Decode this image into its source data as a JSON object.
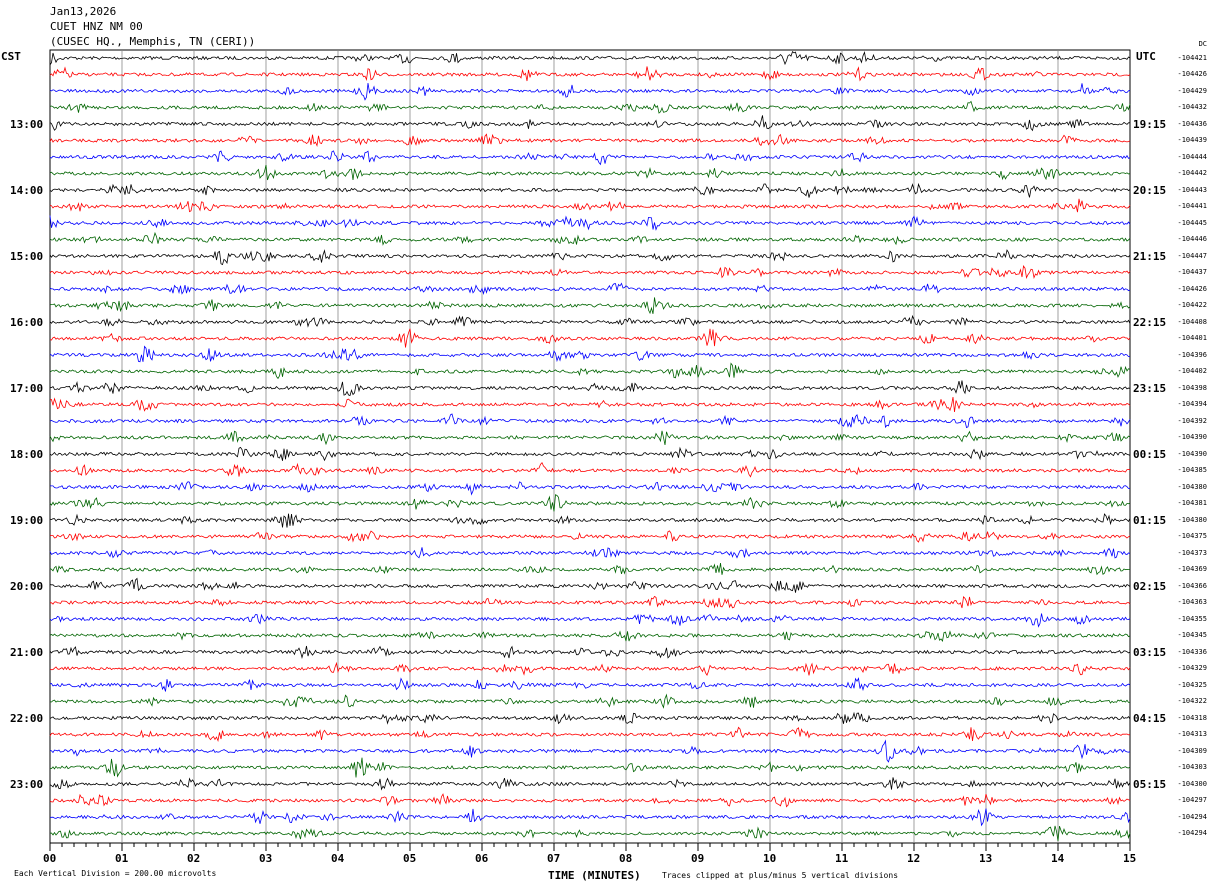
{
  "header": {
    "date": "Jan13,2026",
    "station": "CUET HNZ NM 00",
    "location": "(CUSEC HQ., Memphis, TN (CERI))"
  },
  "left_tz": "CST",
  "right_tz": "UTC",
  "dc_label": "DC",
  "chart_data": {
    "type": "line",
    "title": "Jan13,2026 CUET HNZ NM 00 (CUSEC HQ., Memphis, TN (CERI))",
    "xlabel": "TIME (MINUTES)",
    "xlim": [
      0,
      15
    ],
    "x_ticks": [
      "00",
      "01",
      "02",
      "03",
      "04",
      "05",
      "06",
      "07",
      "08",
      "09",
      "10",
      "11",
      "12",
      "13",
      "14",
      "15"
    ],
    "left_hour_labels": [
      "13:00",
      "14:00",
      "15:00",
      "16:00",
      "17:00",
      "18:00",
      "19:00",
      "20:00",
      "21:00",
      "22:00",
      "23:00"
    ],
    "right_hour_labels": [
      "19:15",
      "20:15",
      "21:15",
      "22:15",
      "23:15",
      "00:15",
      "01:15",
      "02:15",
      "03:15",
      "04:15",
      "05:15"
    ],
    "trace_colors": [
      "#000000",
      "#ff0000",
      "#0000ff",
      "#006400"
    ],
    "dc_offsets": [
      "-104421",
      "-104426",
      "-104429",
      "-104432",
      "-104436",
      "-104439",
      "-104444",
      "-104442",
      "-104443",
      "-104441",
      "-104445",
      "-104446",
      "-104447",
      "-104437",
      "-104426",
      "-104422",
      "-104408",
      "-104401",
      "-104396",
      "-104402",
      "-104398",
      "-104394",
      "-104392",
      "-104390",
      "-104390",
      "-104385",
      "-104380",
      "-104381",
      "-104380",
      "-104375",
      "-104373",
      "-104369",
      "-104366",
      "-104363",
      "-104355",
      "-104345",
      "-104336",
      "-104329",
      "-104325",
      "-104322",
      "-104318",
      "-104313",
      "-104309",
      "-104303",
      "-104300",
      "-104297",
      "-104294",
      "-104294"
    ]
  },
  "footer": {
    "scale": "Each Vertical Division =  200.00 microvolts",
    "clip": "Traces clipped at plus/minus 5 vertical divisions"
  }
}
